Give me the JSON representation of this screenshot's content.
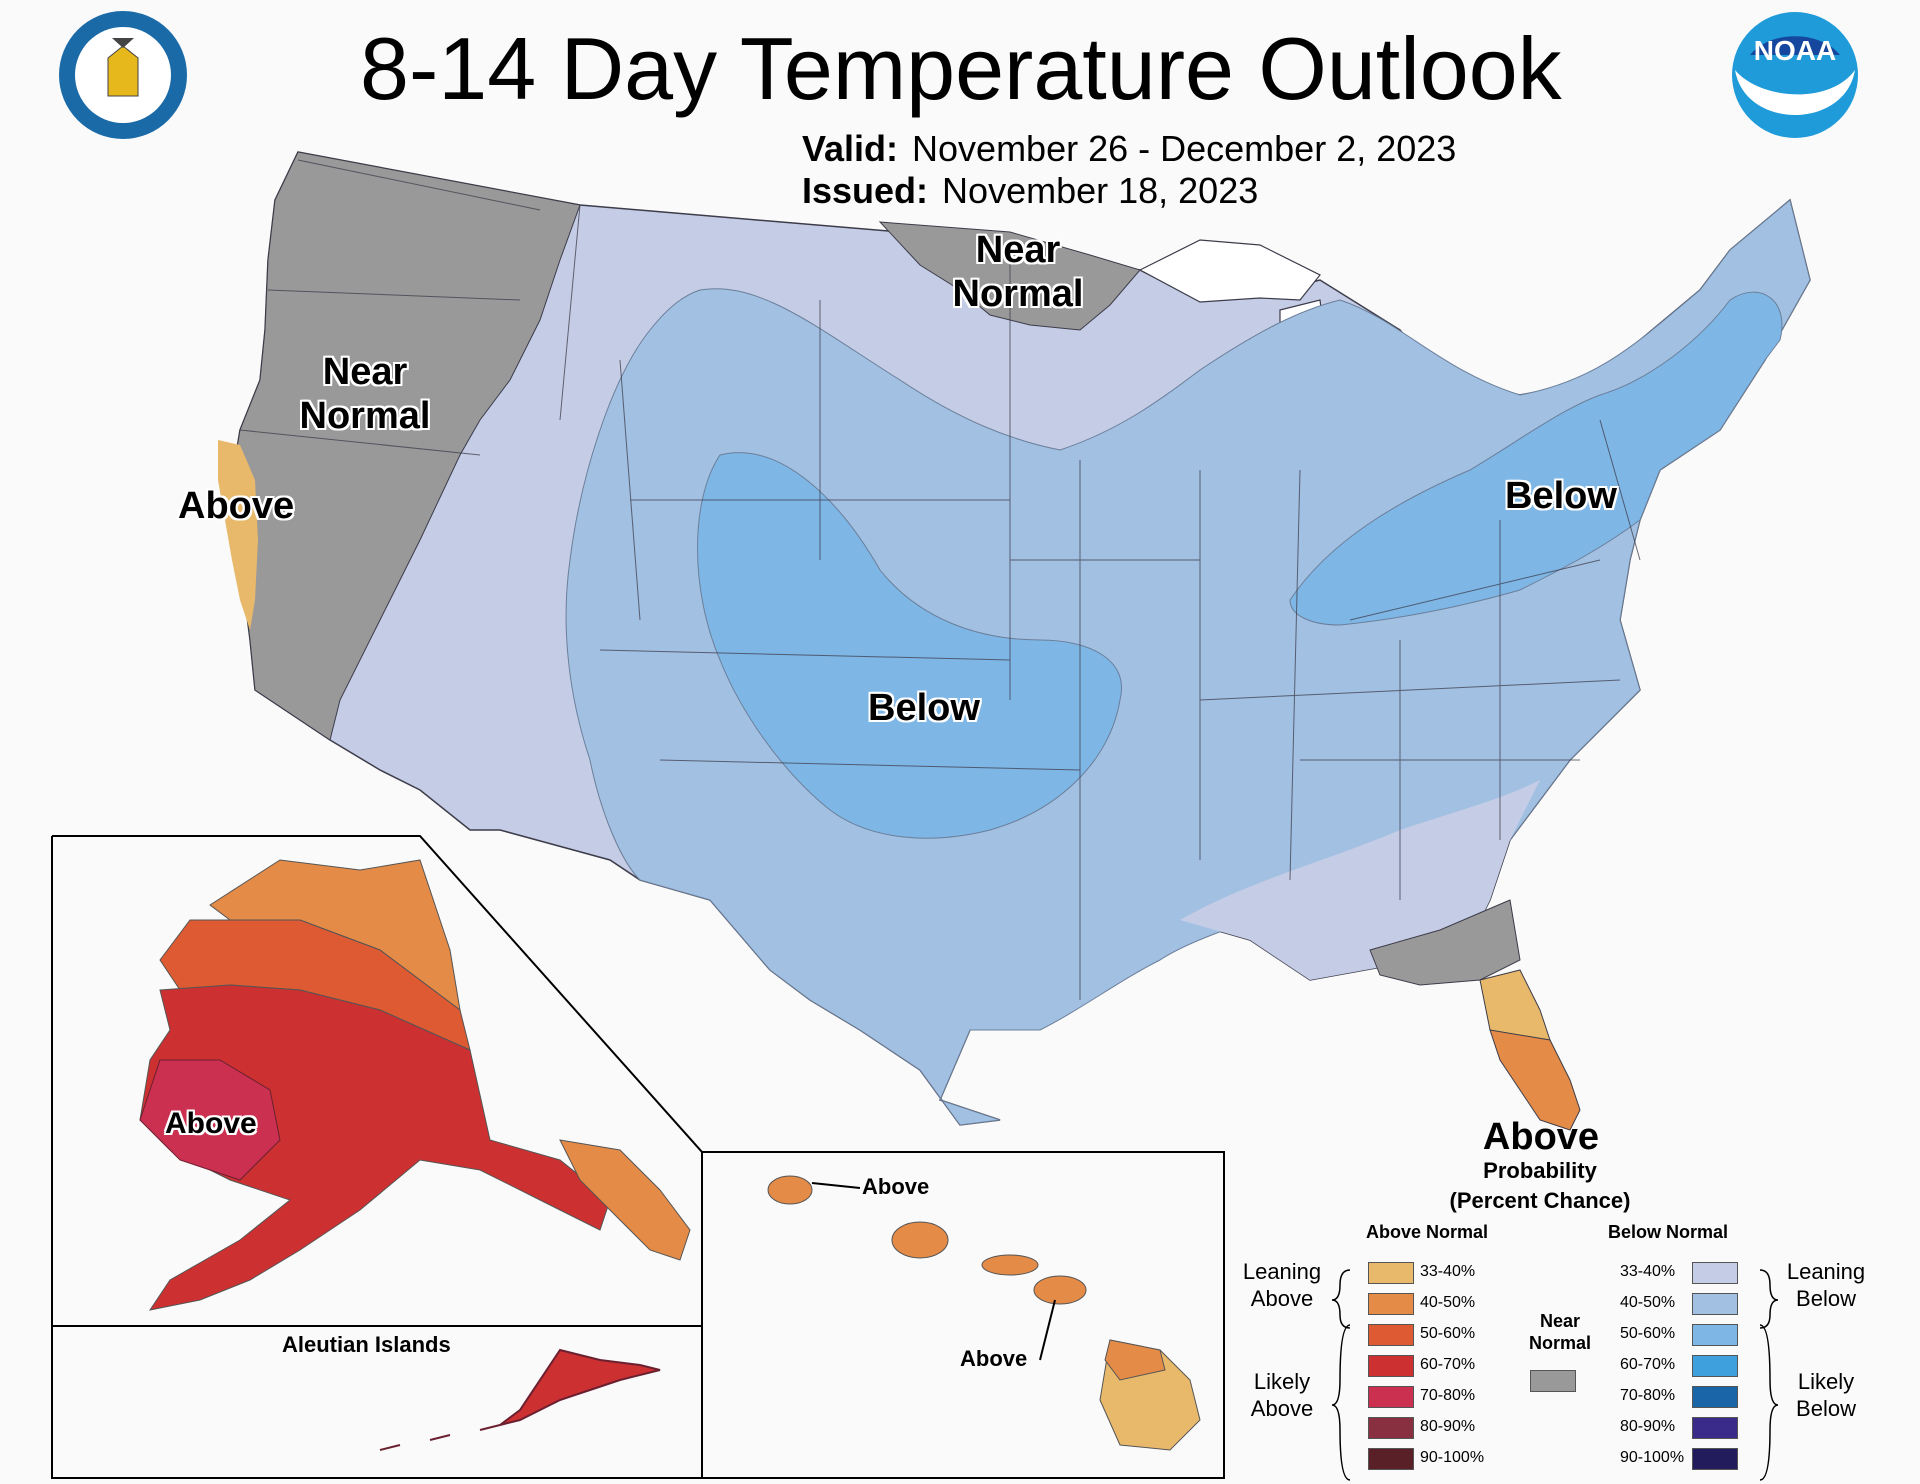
{
  "header": {
    "title": "8-14 Day Temperature Outlook",
    "valid_label": "Valid:",
    "valid_value": "November 26 - December 2, 2023",
    "issued_label": "Issued:",
    "issued_value": "November 18, 2023"
  },
  "logos": {
    "commerce_seal_text": "DEPARTMENT OF COMMERCE · UNITED STATES OF AMERICA",
    "noaa_text": "NOAA"
  },
  "map_labels": {
    "west_near_normal": "Near Normal",
    "north_near_normal": "Near Normal",
    "california_above": "Above",
    "central_below": "Below",
    "northeast_below": "Below",
    "alaska_above": "Above",
    "hawaii_above_1": "Above",
    "hawaii_above_2": "Above",
    "aleutian_title": "Aleutian Islands"
  },
  "legend": {
    "main_label": "Above",
    "subtitle_1": "Probability",
    "subtitle_2": "(Percent Chance)",
    "above_header": "Above Normal",
    "below_header": "Below Normal",
    "near_normal_1": "Near",
    "near_normal_2": "Normal",
    "leaning_above_1": "Leaning",
    "leaning_above_2": "Above",
    "likely_above_1": "Likely",
    "likely_above_2": "Above",
    "leaning_below_1": "Leaning",
    "leaning_below_2": "Below",
    "likely_below_1": "Likely",
    "likely_below_2": "Below",
    "above_bins": [
      {
        "range": "33-40%",
        "color": "#e8b86b"
      },
      {
        "range": "40-50%",
        "color": "#e48b47"
      },
      {
        "range": "50-60%",
        "color": "#dd5a32"
      },
      {
        "range": "60-70%",
        "color": "#cc3030"
      },
      {
        "range": "70-80%",
        "color": "#cc3050"
      },
      {
        "range": "80-90%",
        "color": "#893040"
      },
      {
        "range": "90-100%",
        "color": "#5a2028"
      }
    ],
    "below_bins": [
      {
        "range": "33-40%",
        "color": "#c5cce6"
      },
      {
        "range": "40-50%",
        "color": "#a2c0e2"
      },
      {
        "range": "50-60%",
        "color": "#7eb6e6"
      },
      {
        "range": "60-70%",
        "color": "#3ea0dc"
      },
      {
        "range": "70-80%",
        "color": "#1a64a8"
      },
      {
        "range": "80-90%",
        "color": "#3a2a8a"
      },
      {
        "range": "90-100%",
        "color": "#221b5c"
      }
    ],
    "near_normal_color": "#999999"
  },
  "colors": {
    "background": "#fafafa",
    "state_lines": "#3c3c4a",
    "water": "#ffffff"
  }
}
